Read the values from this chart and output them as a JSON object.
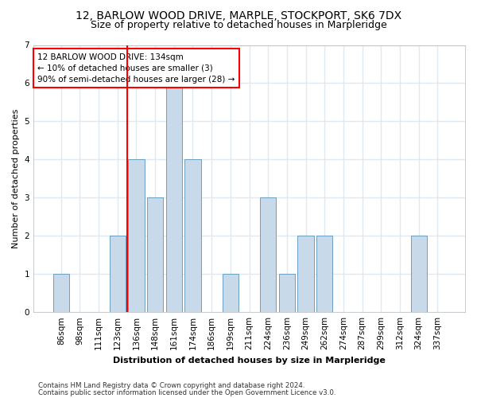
{
  "title1": "12, BARLOW WOOD DRIVE, MARPLE, STOCKPORT, SK6 7DX",
  "title2": "Size of property relative to detached houses in Marpleridge",
  "xlabel": "Distribution of detached houses by size in Marpleridge",
  "ylabel": "Number of detached properties",
  "categories": [
    "86sqm",
    "98sqm",
    "111sqm",
    "123sqm",
    "136sqm",
    "148sqm",
    "161sqm",
    "174sqm",
    "186sqm",
    "199sqm",
    "211sqm",
    "224sqm",
    "236sqm",
    "249sqm",
    "262sqm",
    "274sqm",
    "287sqm",
    "299sqm",
    "312sqm",
    "324sqm",
    "337sqm"
  ],
  "values": [
    1,
    0,
    0,
    2,
    4,
    3,
    6,
    4,
    0,
    1,
    0,
    3,
    1,
    2,
    2,
    0,
    0,
    0,
    0,
    2,
    0
  ],
  "bar_color": "#c8d9ea",
  "bar_edge_color": "#6a9ec0",
  "red_line_index": 4,
  "annotation_line1": "12 BARLOW WOOD DRIVE: 134sqm",
  "annotation_line2": "← 10% of detached houses are smaller (3)",
  "annotation_line3": "90% of semi-detached houses are larger (28) →",
  "footer1": "Contains HM Land Registry data © Crown copyright and database right 2024.",
  "footer2": "Contains public sector information licensed under the Open Government Licence v3.0.",
  "ylim_max": 7,
  "bg_color": "#ffffff",
  "grid_color": "#e0e8f0",
  "title_fontsize": 10,
  "subtitle_fontsize": 9,
  "bar_width": 0.85
}
